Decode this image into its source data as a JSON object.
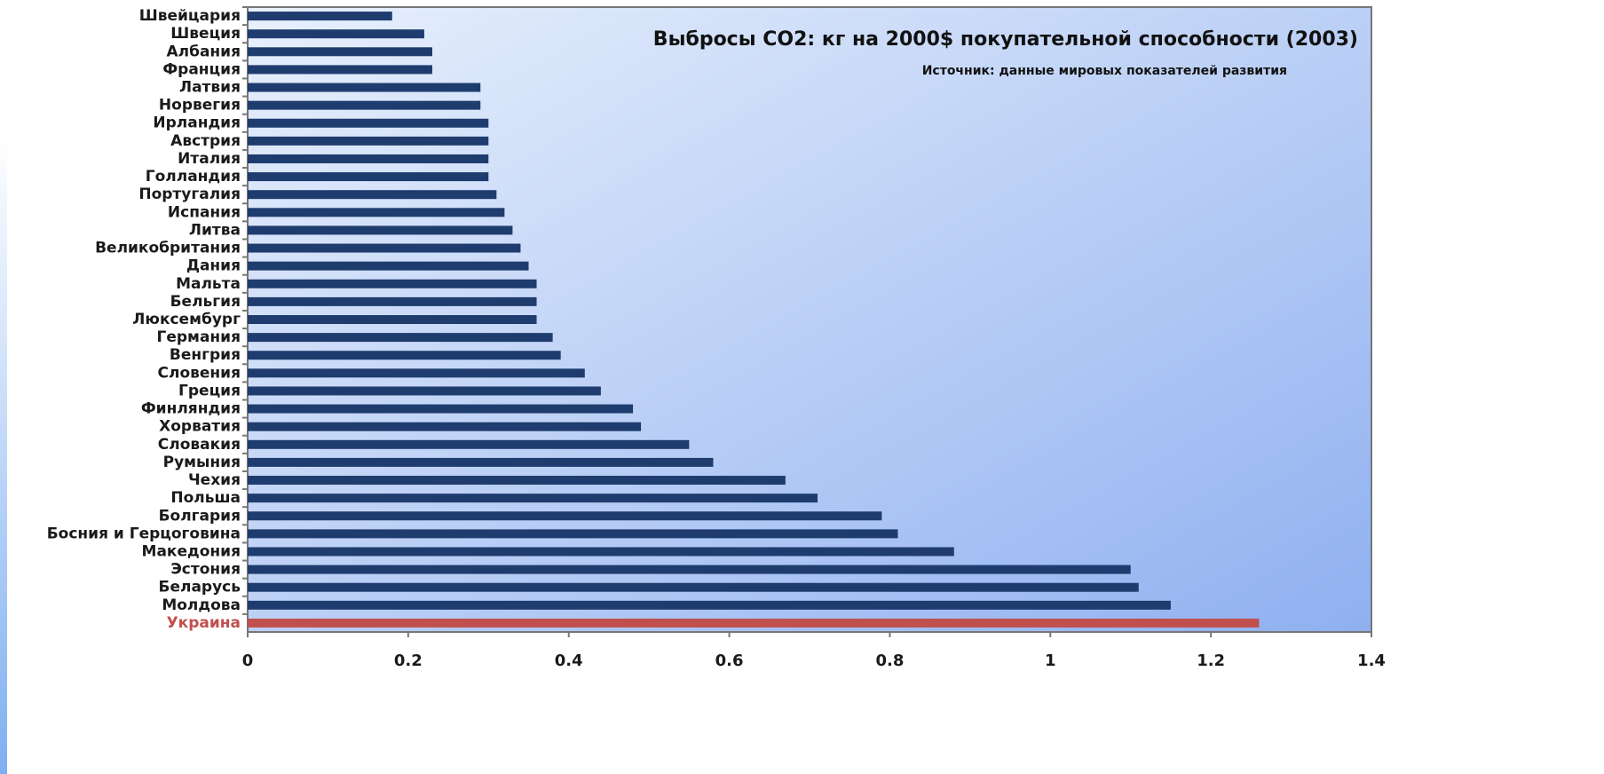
{
  "chart_data": {
    "type": "bar",
    "orientation": "horizontal",
    "title": "Выбросы CO2: кг на 2000$ покупательной способности (2003)",
    "subtitle": "Источник:  данные мировых показателей развития",
    "categories": [
      "Швейцария",
      "Швеция",
      "Албания",
      "Франция",
      "Латвия",
      "Норвегия",
      "Ирландия",
      "Австрия",
      "Италия",
      "Голландия",
      "Португалия",
      "Испания",
      "Литва",
      "Великобритания",
      "Дания",
      "Мальта",
      "Бельгия",
      "Люксембург",
      "Германия",
      "Венгрия",
      "Словения",
      "Греция",
      "Финляндия",
      "Хорватия",
      "Словакия",
      "Румыния",
      "Чехия",
      "Польша",
      "Болгария",
      "Босния и Герцоговина",
      "Македония",
      "Эстония",
      "Беларусь",
      "Молдова",
      "Украина"
    ],
    "values": [
      0.18,
      0.22,
      0.23,
      0.23,
      0.29,
      0.29,
      0.3,
      0.3,
      0.3,
      0.3,
      0.31,
      0.32,
      0.33,
      0.34,
      0.35,
      0.36,
      0.36,
      0.36,
      0.38,
      0.39,
      0.42,
      0.44,
      0.48,
      0.49,
      0.55,
      0.58,
      0.67,
      0.71,
      0.79,
      0.81,
      0.88,
      1.1,
      1.11,
      1.15,
      1.26
    ],
    "colors": [
      "#1f3c6e",
      "#1f3c6e",
      "#1f3c6e",
      "#1f3c6e",
      "#1f3c6e",
      "#1f3c6e",
      "#1f3c6e",
      "#1f3c6e",
      "#1f3c6e",
      "#1f3c6e",
      "#1f3c6e",
      "#1f3c6e",
      "#1f3c6e",
      "#1f3c6e",
      "#1f3c6e",
      "#1f3c6e",
      "#1f3c6e",
      "#1f3c6e",
      "#1f3c6e",
      "#1f3c6e",
      "#1f3c6e",
      "#1f3c6e",
      "#1f3c6e",
      "#1f3c6e",
      "#1f3c6e",
      "#1f3c6e",
      "#1f3c6e",
      "#1f3c6e",
      "#1f3c6e",
      "#1f3c6e",
      "#1f3c6e",
      "#1f3c6e",
      "#1f3c6e",
      "#1f3c6e",
      "#c0504d"
    ],
    "xlim": [
      0,
      1.4
    ],
    "xticks": [
      0,
      0.2,
      0.4,
      0.6,
      0.8,
      1,
      1.2,
      1.4
    ]
  }
}
